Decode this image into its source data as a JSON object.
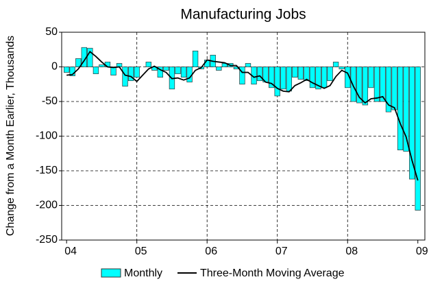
{
  "chart_data": {
    "type": "bar_line",
    "title": "Manufacturing Jobs",
    "y_label": "Change from a  Month Earlier, Thousands",
    "xlim": [
      2003.93,
      2009.1
    ],
    "xticks": [
      {
        "value": 2004,
        "label": "04"
      },
      {
        "value": 2005,
        "label": "05"
      },
      {
        "value": 2006,
        "label": "06"
      },
      {
        "value": 2007,
        "label": "07"
      },
      {
        "value": 2008,
        "label": "08"
      },
      {
        "value": 2009,
        "label": "09"
      }
    ],
    "ylim": [
      -250,
      50
    ],
    "yticks": [
      -250,
      -200,
      -150,
      -100,
      -50,
      0,
      50
    ],
    "grid": true,
    "x": [
      2004.0,
      2004.083,
      2004.167,
      2004.25,
      2004.333,
      2004.417,
      2004.5,
      2004.583,
      2004.667,
      2004.75,
      2004.833,
      2004.917,
      2005.0,
      2005.083,
      2005.167,
      2005.25,
      2005.333,
      2005.417,
      2005.5,
      2005.583,
      2005.667,
      2005.75,
      2005.833,
      2005.917,
      2006.0,
      2006.083,
      2006.167,
      2006.25,
      2006.333,
      2006.417,
      2006.5,
      2006.583,
      2006.667,
      2006.75,
      2006.833,
      2006.917,
      2007.0,
      2007.083,
      2007.167,
      2007.25,
      2007.333,
      2007.417,
      2007.5,
      2007.583,
      2007.667,
      2007.75,
      2007.833,
      2007.917,
      2008.0,
      2008.083,
      2008.167,
      2008.25,
      2008.333,
      2008.417,
      2008.5,
      2008.583,
      2008.667,
      2008.75,
      2008.833,
      2008.917,
      2009.0
    ],
    "series": [
      {
        "name": "Monthly",
        "color": "#00ffff",
        "values": [
          -8,
          -13,
          12,
          28,
          27,
          -10,
          3,
          7,
          -12,
          5,
          -28,
          -20,
          -15,
          0,
          7,
          -5,
          -15,
          -5,
          -32,
          -10,
          -15,
          -22,
          23,
          -3,
          10,
          17,
          -5,
          5,
          5,
          -3,
          -25,
          5,
          -25,
          -20,
          -22,
          -30,
          -42,
          -32,
          -35,
          -15,
          -18,
          -20,
          -30,
          -32,
          -30,
          -20,
          7,
          -3,
          -30,
          -50,
          -52,
          -55,
          -30,
          -50,
          -50,
          -65,
          -62,
          -120,
          -122,
          -162,
          -207
        ]
      },
      {
        "name": "Three-Month Moving Average",
        "color": "#000000",
        "values": [
          -12,
          -11,
          -3,
          9,
          22,
          15,
          7,
          0,
          -1,
          0,
          -12,
          -14,
          -21,
          -12,
          -3,
          1,
          -4,
          -8,
          -17,
          -16,
          -19,
          -16,
          -5,
          -1,
          10,
          8,
          7,
          6,
          2,
          2,
          -8,
          -8,
          -15,
          -13,
          -22,
          -24,
          -31,
          -35,
          -36,
          -27,
          -23,
          -18,
          -23,
          -27,
          -31,
          -27,
          -14,
          -5,
          -9,
          -28,
          -44,
          -52,
          -46,
          -45,
          -43,
          -55,
          -59,
          -82,
          -101,
          -135,
          -164
        ]
      }
    ]
  }
}
